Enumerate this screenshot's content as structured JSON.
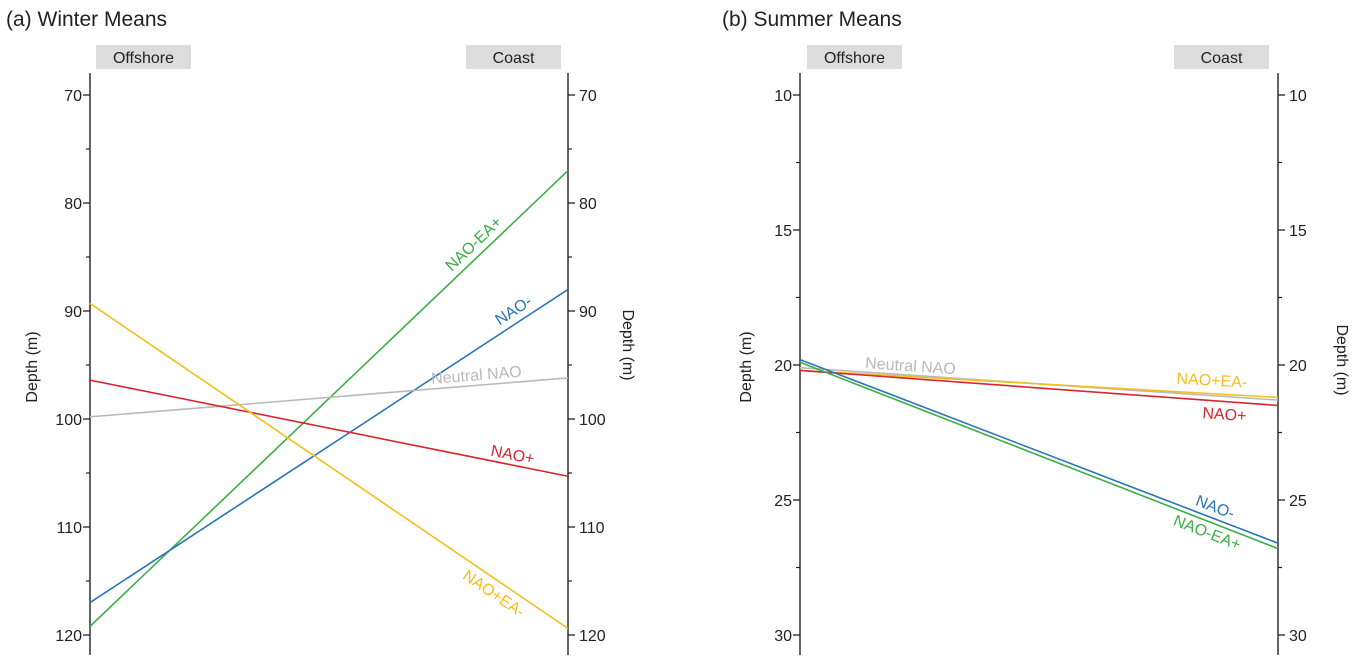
{
  "chart_data": [
    {
      "type": "line",
      "title": "(a) Winter Means",
      "left_header": "Offshore",
      "right_header": "Coast",
      "ylabel_left": "Depth (m)",
      "ylabel_right": "Depth (m)",
      "ylim": [
        70,
        120
      ],
      "y_inverted": true,
      "y_ticks": [
        70,
        80,
        90,
        100,
        110,
        120
      ],
      "y_tick_labels": [
        "70",
        "80",
        "90",
        "100",
        "110",
        "120"
      ],
      "y_minor_step": 5,
      "series": [
        {
          "name": "NAO-EA+",
          "color": "#3cae48",
          "offshore": 119.2,
          "coast": 77.0
        },
        {
          "name": "NAO-",
          "color": "#2a75b7",
          "offshore": 117.0,
          "coast": 88.0
        },
        {
          "name": "Neutral NAO",
          "color": "#b9b9b9",
          "offshore": 99.8,
          "coast": 96.2
        },
        {
          "name": "NAO+",
          "color": "#d62730",
          "offshore": 96.4,
          "coast": 105.3
        },
        {
          "name": "NAO+EA-",
          "color": "#f4bf1d",
          "offshore": 89.3,
          "coast": 119.4
        }
      ]
    },
    {
      "type": "line",
      "title": "(b) Summer Means",
      "left_header": "Offshore",
      "right_header": "Coast",
      "ylabel_left": "Depth (m)",
      "ylabel_right": "Depth (m)",
      "ylim": [
        10,
        30
      ],
      "y_inverted": true,
      "y_ticks": [
        10,
        15,
        20,
        25,
        30
      ],
      "y_tick_labels": [
        "10",
        "15",
        "20",
        "25",
        "30"
      ],
      "y_minor_step": 2.5,
      "series": [
        {
          "name": "Neutral NAO",
          "color": "#b9b9b9",
          "offshore": 20.1,
          "coast": 21.3
        },
        {
          "name": "NAO+EA-",
          "color": "#f4bf1d",
          "offshore": 20.2,
          "coast": 21.2
        },
        {
          "name": "NAO+",
          "color": "#d62730",
          "offshore": 20.2,
          "coast": 21.5
        },
        {
          "name": "NAO-",
          "color": "#2a75b7",
          "offshore": 19.8,
          "coast": 26.6
        },
        {
          "name": "NAO-EA+",
          "color": "#3cae48",
          "offshore": 19.9,
          "coast": 26.8
        }
      ]
    }
  ]
}
